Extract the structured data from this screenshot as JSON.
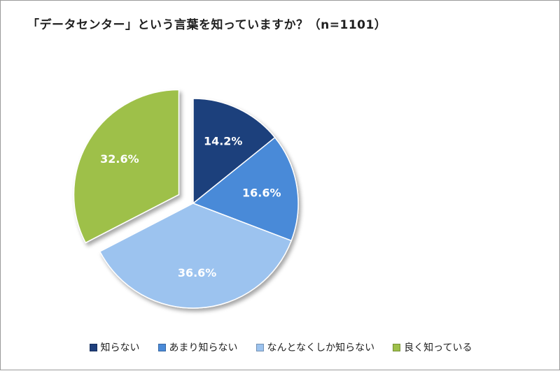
{
  "chart_data": {
    "type": "pie",
    "title": "「データセンター」という言葉を知っていますか？（n=1101）",
    "categories": [
      "知らない",
      "あまり知らない",
      "なんとなくしか知らない",
      "良く知っている"
    ],
    "values": [
      14.2,
      16.6,
      36.6,
      32.6
    ],
    "value_labels": [
      "14.2%",
      "16.6%",
      "36.6%",
      "32.6%"
    ],
    "colors": [
      "#1f3f7c",
      "#4a8ad8",
      "#9cc3ef",
      "#9ec04a"
    ],
    "start_angle_deg": 0,
    "direction": "clockwise",
    "exploded": [
      false,
      false,
      false,
      true
    ],
    "legend_position": "bottom"
  }
}
